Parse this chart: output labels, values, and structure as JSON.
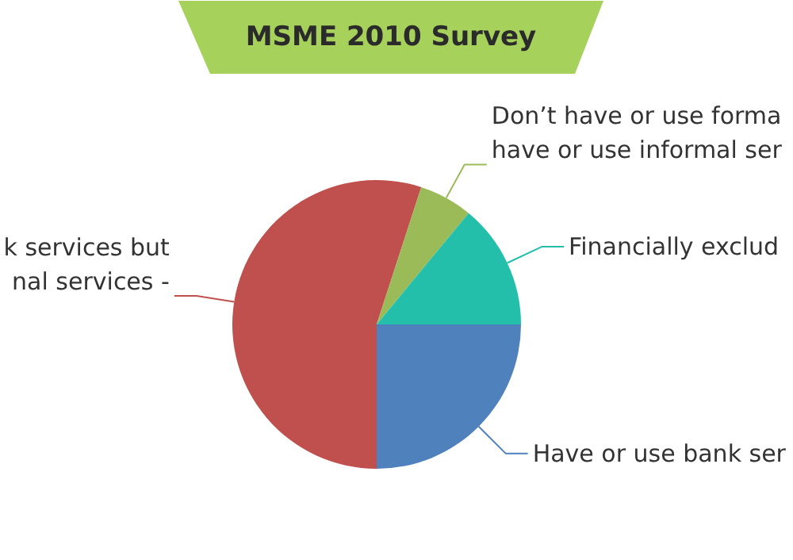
{
  "chart_data": {
    "type": "pie",
    "title": "MSME 2010 Survey",
    "categories": [
      "Have or use bank ser",
      "k services but\nnal services -",
      "Don’t have or use forma\nhave or use informal ser",
      "Financially exclud"
    ],
    "values": [
      25,
      55,
      6,
      14
    ],
    "colors": [
      "#4f81bd",
      "#c0504d",
      "#9bbb59",
      "#23bfaa"
    ]
  }
}
